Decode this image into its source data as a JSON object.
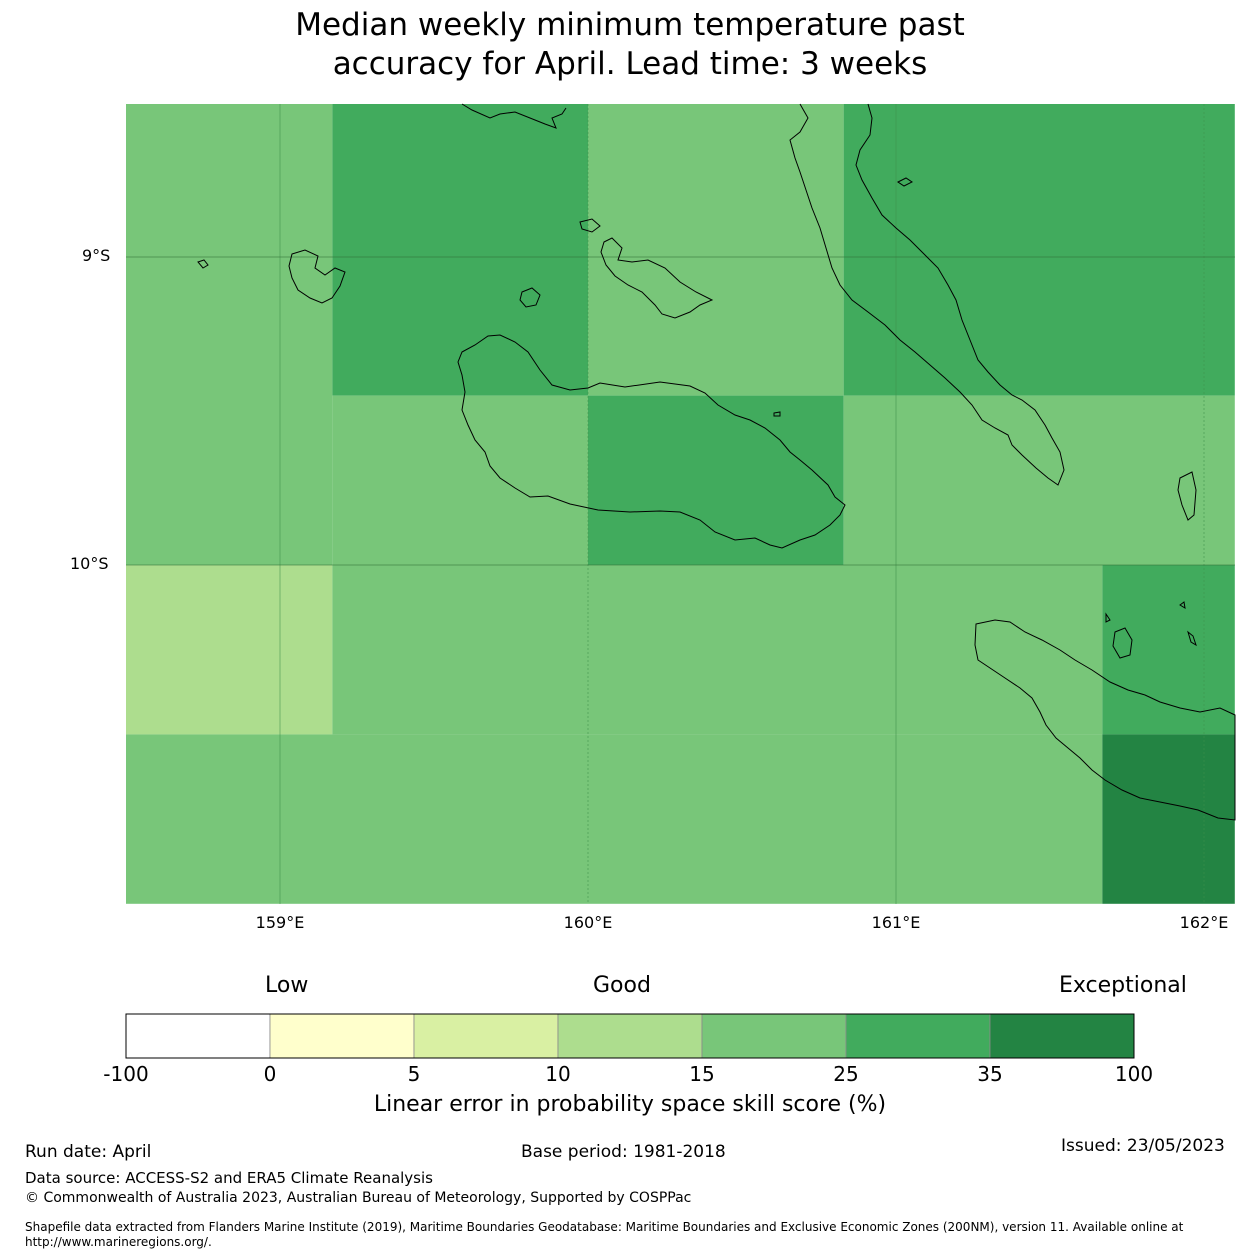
{
  "title": {
    "line1": "Median weekly minimum temperature past",
    "line2": "accuracy for April. Lead time: 3 weeks"
  },
  "map": {
    "lat_labels": [
      "9°S",
      "10°S"
    ],
    "lon_labels": [
      "159°E",
      "160°E",
      "161°E",
      "162°E"
    ],
    "extent": {
      "lon": [
        158.5,
        162.1
      ],
      "lat": [
        -8.5,
        -11.1
      ]
    },
    "grid_cells": [
      {
        "lon": [
          158.5,
          159.17
        ],
        "lat": [
          -8.5,
          -10.0
        ],
        "category": "15-25"
      },
      {
        "lon": [
          159.17,
          160.0
        ],
        "lat": [
          -8.5,
          -9.45
        ],
        "category": "25-35"
      },
      {
        "lon": [
          160.0,
          160.83
        ],
        "lat": [
          -8.5,
          -9.45
        ],
        "category": "15-25"
      },
      {
        "lon": [
          160.83,
          162.1
        ],
        "lat": [
          -8.5,
          -9.45
        ],
        "category": "25-35"
      },
      {
        "lon": [
          159.17,
          160.0
        ],
        "lat": [
          -9.45,
          -10.0
        ],
        "category": "15-25"
      },
      {
        "lon": [
          160.0,
          160.83
        ],
        "lat": [
          -9.45,
          -10.0
        ],
        "category": "25-35"
      },
      {
        "lon": [
          160.83,
          162.1
        ],
        "lat": [
          -9.45,
          -10.0
        ],
        "category": "15-25"
      },
      {
        "lon": [
          158.5,
          159.17
        ],
        "lat": [
          -10.0,
          -10.55
        ],
        "category": "10-15"
      },
      {
        "lon": [
          159.17,
          161.67
        ],
        "lat": [
          -10.0,
          -10.55
        ],
        "category": "15-25"
      },
      {
        "lon": [
          161.67,
          162.1
        ],
        "lat": [
          -10.0,
          -10.55
        ],
        "category": "25-35"
      },
      {
        "lon": [
          158.5,
          161.67
        ],
        "lat": [
          -10.55,
          -11.1
        ],
        "category": "15-25"
      },
      {
        "lon": [
          161.67,
          162.1
        ],
        "lat": [
          -10.55,
          -11.1
        ],
        "category": "35-100"
      }
    ]
  },
  "colorbar": {
    "category_labels": {
      "low": "Low",
      "good": "Good",
      "exceptional": "Exceptional"
    },
    "ticks": [
      "-100",
      "0",
      "5",
      "10",
      "15",
      "25",
      "35",
      "100"
    ],
    "colors": [
      "#ffffff",
      "#ffffcc",
      "#d9f0a3",
      "#addd8e",
      "#78c679",
      "#41ab5d",
      "#238443"
    ],
    "title": "Linear error in probability space skill score (%)"
  },
  "footer": {
    "run_date": "Run date: April",
    "base_period": "Base period: 1981-2018",
    "issued": "Issued: 23/05/2023",
    "data_source": "Data source: ACCESS-S2 and ERA5 Climate Reanalysis",
    "copyright": "© Commonwealth of Australia 2023, Australian Bureau of Meteorology, Supported by COSPPac",
    "shapefile_line1": "Shapefile data extracted from Flanders Marine Institute (2019), Maritime Boundaries Geodatabase: Maritime Boundaries and Exclusive Economic Zones (200NM), version 11. Available online at",
    "shapefile_line2": "http://www.marineregions.org/."
  }
}
